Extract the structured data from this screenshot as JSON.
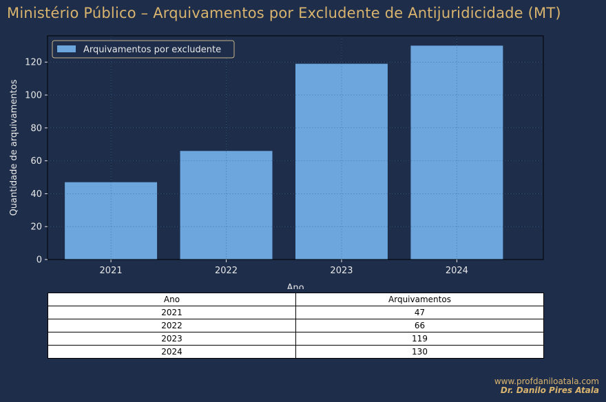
{
  "title": "Ministério Público – Arquivamentos por Excludente de Antijuridicidade (MT)",
  "colors": {
    "background": "#1e2d4a",
    "plot_background": "#1e2d4a",
    "bar": "#6ca6dd",
    "title": "#d9b46e",
    "text": "#e8e8e8"
  },
  "chart_data": {
    "type": "bar",
    "categories": [
      "2021",
      "2022",
      "2023",
      "2024"
    ],
    "series": [
      {
        "name": "Arquivamentos por excludente",
        "values": [
          47,
          66,
          119,
          130
        ]
      }
    ],
    "xlabel": "Ano",
    "ylabel": "Quantidade de arquivamentos",
    "ylim": [
      0,
      136
    ],
    "yticks": [
      0,
      20,
      40,
      60,
      80,
      100,
      120
    ],
    "grid": true,
    "legend_position": "top-left"
  },
  "table": {
    "headers": [
      "Ano",
      "Arquivamentos"
    ],
    "rows": [
      [
        "2021",
        "47"
      ],
      [
        "2022",
        "66"
      ],
      [
        "2023",
        "119"
      ],
      [
        "2024",
        "130"
      ]
    ]
  },
  "credit": {
    "url": "www.profdaniloatala.com",
    "author": "Dr. Danilo Pires Atala"
  }
}
